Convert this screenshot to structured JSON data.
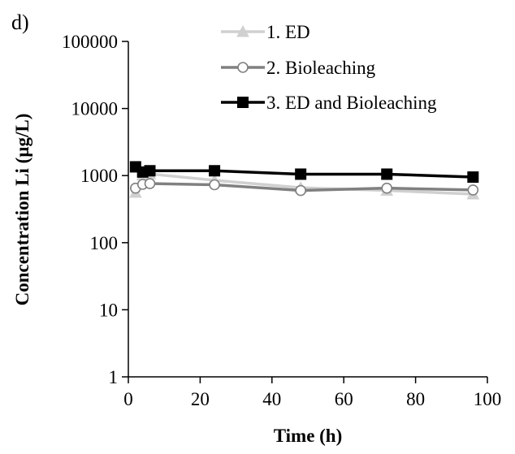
{
  "chart_data": {
    "type": "line",
    "panel_label": "d)",
    "title": "",
    "xlabel": "Time (h)",
    "ylabel": "Concentration Li  (µg/L)",
    "xlim": [
      0,
      100
    ],
    "ylim": [
      1,
      100000
    ],
    "y_scale": "log",
    "x_ticks": [
      0,
      20,
      40,
      60,
      80,
      100
    ],
    "y_ticks": [
      1,
      10,
      100,
      1000,
      10000,
      100000
    ],
    "x_tick_labels": [
      "0",
      "20",
      "40",
      "60",
      "80",
      "100"
    ],
    "y_tick_labels": [
      "1",
      "10",
      "100",
      "1000",
      "10000",
      "100000"
    ],
    "grid": false,
    "legend_position": "top-right",
    "series": [
      {
        "name": "1. ED",
        "color": "#d0d0d0",
        "marker": "triangle",
        "x": [
          2,
          4,
          6,
          24,
          48,
          72,
          96
        ],
        "y": [
          560,
          1020,
          1060,
          850,
          660,
          600,
          530
        ]
      },
      {
        "name": "2. Bioleaching",
        "color": "#808080",
        "marker": "circle-open",
        "x": [
          2,
          4,
          6,
          24,
          48,
          72,
          96
        ],
        "y": [
          650,
          740,
          760,
          730,
          600,
          650,
          610
        ]
      },
      {
        "name": "3. ED and Bioleaching",
        "color": "#000000",
        "marker": "square",
        "x": [
          2,
          4,
          6,
          24,
          48,
          72,
          96
        ],
        "y": [
          1350,
          1130,
          1180,
          1180,
          1050,
          1050,
          950
        ]
      }
    ]
  }
}
